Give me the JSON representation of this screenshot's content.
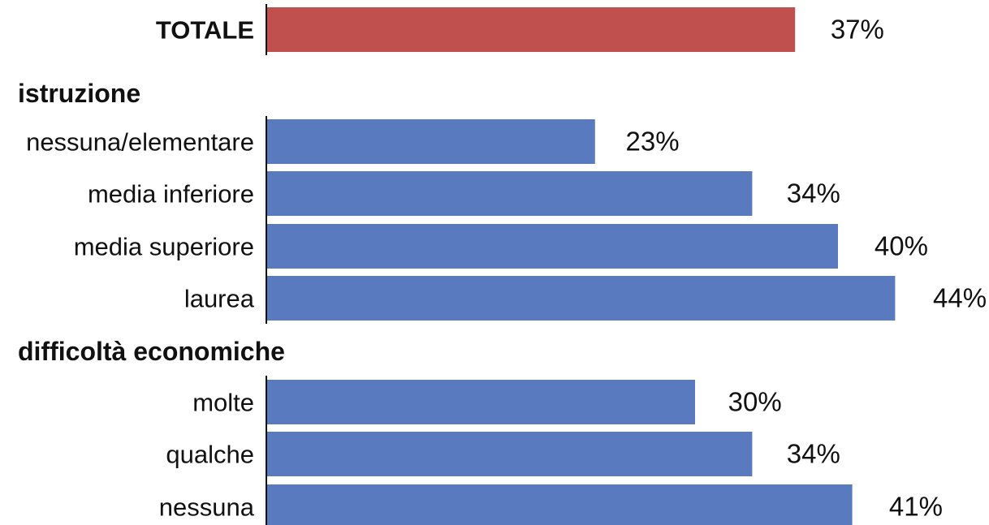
{
  "chart_data": {
    "type": "bar",
    "orientation": "horizontal",
    "title": "",
    "xlabel": "",
    "ylabel": "",
    "value_suffix": "%",
    "xlim": [
      0,
      44
    ],
    "grid": false,
    "colors": {
      "total": "#c0504d",
      "default": "#5a7abf"
    },
    "rows": [
      {
        "kind": "bar",
        "label": "TOTALE",
        "value": 37,
        "display": "37%",
        "bold": true,
        "color_key": "total"
      },
      {
        "kind": "section",
        "label": "istruzione"
      },
      {
        "kind": "bar",
        "label": "nessuna/elementare",
        "value": 23,
        "display": "23%",
        "color_key": "default"
      },
      {
        "kind": "bar",
        "label": "media inferiore",
        "value": 34,
        "display": "34%",
        "color_key": "default"
      },
      {
        "kind": "bar",
        "label": "media superiore",
        "value": 40,
        "display": "40%",
        "color_key": "default"
      },
      {
        "kind": "bar",
        "label": "laurea",
        "value": 44,
        "display": "44%",
        "color_key": "default"
      },
      {
        "kind": "section",
        "label": "difficoltà economiche"
      },
      {
        "kind": "bar",
        "label": "molte",
        "value": 30,
        "display": "30%",
        "color_key": "default"
      },
      {
        "kind": "bar",
        "label": "qualche",
        "value": 34,
        "display": "34%",
        "color_key": "default"
      },
      {
        "kind": "bar",
        "label": "nessuna",
        "value": 41,
        "display": "41%",
        "color_key": "default"
      }
    ]
  }
}
